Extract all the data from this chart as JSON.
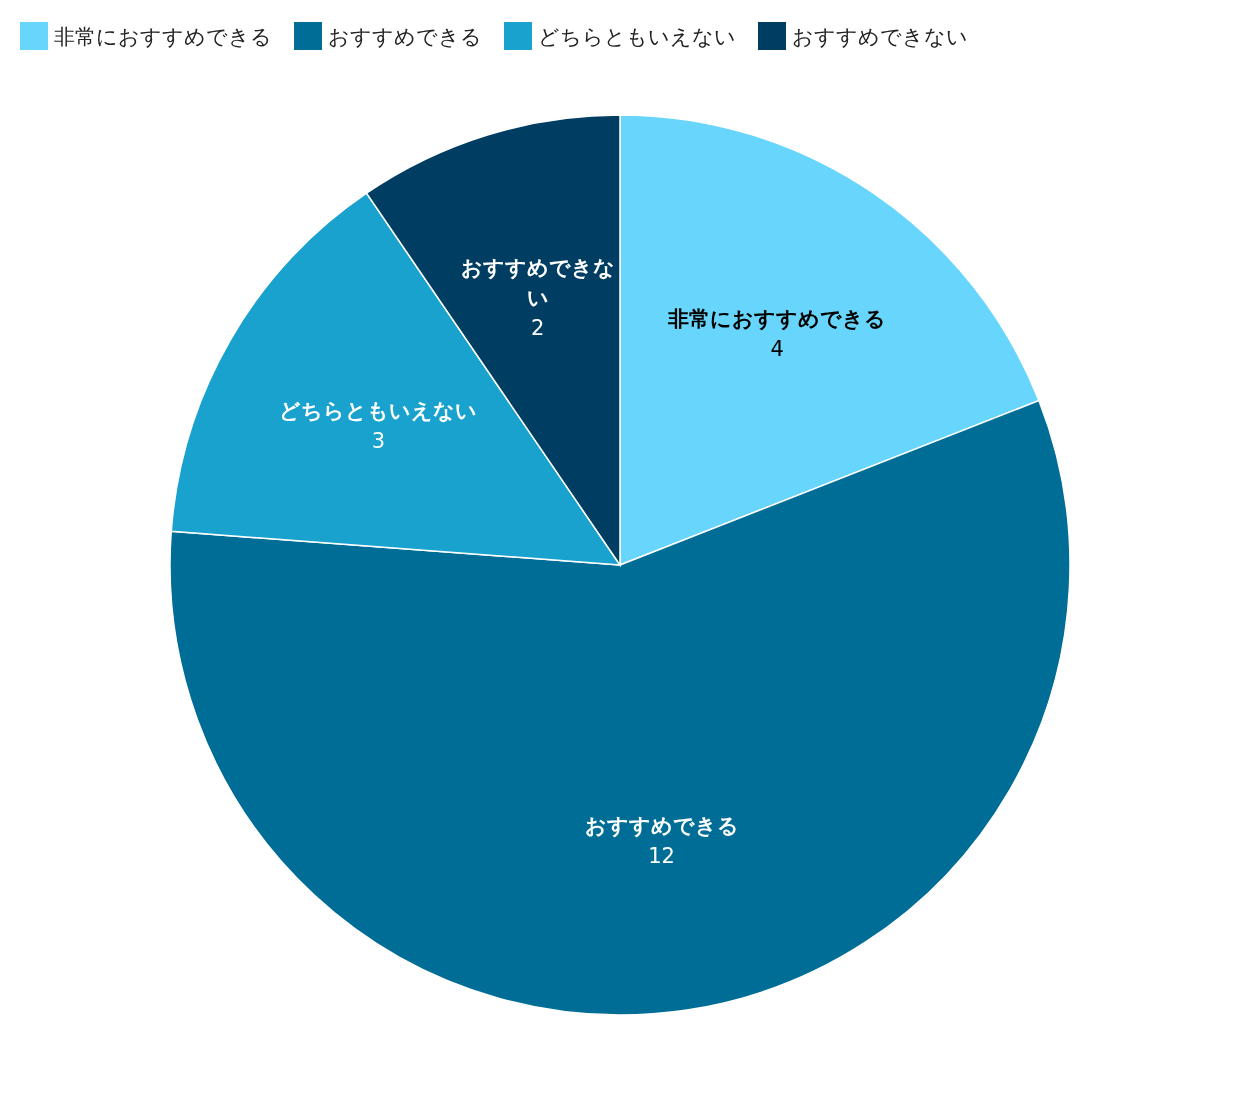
{
  "chart_data": {
    "type": "pie",
    "categories": [
      "非常におすすめできる",
      "おすすめできる",
      "どちらともいえない",
      "おすすめできない"
    ],
    "values": [
      4,
      12,
      3,
      2
    ],
    "colors": [
      "#68d6fc",
      "#006d97",
      "#1aa2cf",
      "#003d62"
    ],
    "data_labels": true,
    "legend": "top"
  }
}
